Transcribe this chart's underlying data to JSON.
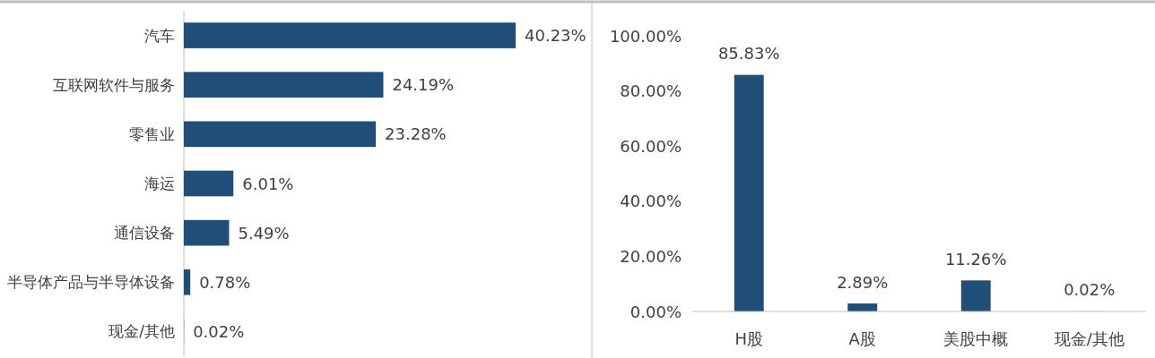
{
  "chart_data": [
    {
      "type": "bar",
      "orientation": "horizontal",
      "color": "#1f4e79",
      "categories": [
        "汽车",
        "互联网软件与服务",
        "零售业",
        "海运",
        "通信设备",
        "半导体产品与半导体设备",
        "现金/其他"
      ],
      "values": [
        40.23,
        24.19,
        23.28,
        6.01,
        5.49,
        0.78,
        0.02
      ],
      "value_labels": [
        "40.23%",
        "24.19%",
        "23.28%",
        "6.01%",
        "5.49%",
        "0.78%",
        "0.02%"
      ]
    },
    {
      "type": "bar",
      "color": "#1f4e79",
      "categories": [
        "H股",
        "A股",
        "美股中概",
        "现金/其他"
      ],
      "values": [
        85.83,
        2.89,
        11.26,
        0.02
      ],
      "value_labels": [
        "85.83%",
        "2.89%",
        "11.26%",
        "0.02%"
      ],
      "ylim": [
        0,
        100
      ],
      "yticks": [
        {
          "value": 0,
          "label": "0.00%"
        },
        {
          "value": 20,
          "label": "20.00%"
        },
        {
          "value": 40,
          "label": "40.00%"
        },
        {
          "value": 60,
          "label": "60.00%"
        },
        {
          "value": 80,
          "label": "80.00%"
        },
        {
          "value": 100,
          "label": "100.00%"
        }
      ]
    }
  ]
}
